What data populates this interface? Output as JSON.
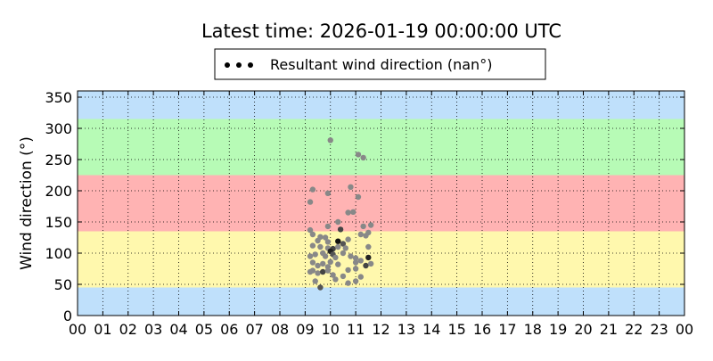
{
  "chart_data": {
    "type": "scatter",
    "title": "Latest time: 2026-01-19 00:00:00 UTC",
    "xlabel": "",
    "ylabel": "Wind direction (°)",
    "xlim": [
      0,
      24
    ],
    "ylim": [
      0,
      360
    ],
    "grid": true,
    "legend_position": "top-center",
    "x_tick_labels": [
      "00",
      "01",
      "02",
      "03",
      "04",
      "05",
      "06",
      "07",
      "08",
      "09",
      "10",
      "11",
      "12",
      "13",
      "14",
      "15",
      "16",
      "17",
      "18",
      "19",
      "20",
      "21",
      "22",
      "23",
      "00"
    ],
    "y_ticks": [
      0,
      50,
      100,
      150,
      200,
      250,
      300,
      350
    ],
    "bands": [
      {
        "from": 0,
        "to": 45,
        "color": "#bfe0fb"
      },
      {
        "from": 45,
        "to": 135,
        "color": "#fff8ad"
      },
      {
        "from": 135,
        "to": 225,
        "color": "#ffb3b3"
      },
      {
        "from": 225,
        "to": 315,
        "color": "#b7fbb6"
      },
      {
        "from": 315,
        "to": 360,
        "color": "#bfe0fb"
      }
    ],
    "series": [
      {
        "name": "Resultant wind direction (nan°)",
        "points": [
          {
            "x": 9.2,
            "y": 182,
            "c": "#888888"
          },
          {
            "x": 9.3,
            "y": 202,
            "c": "#888888"
          },
          {
            "x": 9.9,
            "y": 196,
            "c": "#888888"
          },
          {
            "x": 10.0,
            "y": 281,
            "c": "#888888"
          },
          {
            "x": 11.1,
            "y": 258,
            "c": "#888888"
          },
          {
            "x": 11.3,
            "y": 253,
            "c": "#888888"
          },
          {
            "x": 10.8,
            "y": 206,
            "c": "#888888"
          },
          {
            "x": 11.1,
            "y": 190,
            "c": "#888888"
          },
          {
            "x": 10.7,
            "y": 165,
            "c": "#888888"
          },
          {
            "x": 10.9,
            "y": 166,
            "c": "#888888"
          },
          {
            "x": 10.3,
            "y": 150,
            "c": "#888888"
          },
          {
            "x": 9.9,
            "y": 143,
            "c": "#888888"
          },
          {
            "x": 10.4,
            "y": 138,
            "c": "#444444"
          },
          {
            "x": 11.3,
            "y": 143,
            "c": "#888888"
          },
          {
            "x": 11.6,
            "y": 145,
            "c": "#888888"
          },
          {
            "x": 9.2,
            "y": 137,
            "c": "#888888"
          },
          {
            "x": 9.3,
            "y": 130,
            "c": "#888888"
          },
          {
            "x": 9.6,
            "y": 126,
            "c": "#888888"
          },
          {
            "x": 9.8,
            "y": 125,
            "c": "#888888"
          },
          {
            "x": 9.5,
            "y": 120,
            "c": "#888888"
          },
          {
            "x": 9.9,
            "y": 118,
            "c": "#888888"
          },
          {
            "x": 10.3,
            "y": 119,
            "c": "#111111"
          },
          {
            "x": 10.5,
            "y": 115,
            "c": "#555555"
          },
          {
            "x": 10.7,
            "y": 122,
            "c": "#888888"
          },
          {
            "x": 11.2,
            "y": 130,
            "c": "#888888"
          },
          {
            "x": 11.4,
            "y": 128,
            "c": "#888888"
          },
          {
            "x": 11.5,
            "y": 133,
            "c": "#888888"
          },
          {
            "x": 9.3,
            "y": 112,
            "c": "#888888"
          },
          {
            "x": 9.6,
            "y": 110,
            "c": "#888888"
          },
          {
            "x": 9.9,
            "y": 108,
            "c": "#888888"
          },
          {
            "x": 10.1,
            "y": 107,
            "c": "#444444"
          },
          {
            "x": 10.3,
            "y": 110,
            "c": "#888888"
          },
          {
            "x": 10.6,
            "y": 108,
            "c": "#888888"
          },
          {
            "x": 11.5,
            "y": 110,
            "c": "#888888"
          },
          {
            "x": 9.2,
            "y": 95,
            "c": "#888888"
          },
          {
            "x": 9.4,
            "y": 98,
            "c": "#888888"
          },
          {
            "x": 9.7,
            "y": 100,
            "c": "#888888"
          },
          {
            "x": 9.8,
            "y": 95,
            "c": "#888888"
          },
          {
            "x": 10.0,
            "y": 103,
            "c": "#222222"
          },
          {
            "x": 10.1,
            "y": 98,
            "c": "#555555"
          },
          {
            "x": 10.2,
            "y": 93,
            "c": "#888888"
          },
          {
            "x": 10.5,
            "y": 100,
            "c": "#888888"
          },
          {
            "x": 10.8,
            "y": 95,
            "c": "#888888"
          },
          {
            "x": 11.0,
            "y": 92,
            "c": "#888888"
          },
          {
            "x": 11.2,
            "y": 88,
            "c": "#888888"
          },
          {
            "x": 11.5,
            "y": 93,
            "c": "#222222"
          },
          {
            "x": 9.3,
            "y": 85,
            "c": "#888888"
          },
          {
            "x": 9.5,
            "y": 80,
            "c": "#888888"
          },
          {
            "x": 9.7,
            "y": 83,
            "c": "#888888"
          },
          {
            "x": 9.9,
            "y": 78,
            "c": "#888888"
          },
          {
            "x": 10.0,
            "y": 86,
            "c": "#888888"
          },
          {
            "x": 10.3,
            "y": 82,
            "c": "#888888"
          },
          {
            "x": 11.0,
            "y": 85,
            "c": "#888888"
          },
          {
            "x": 11.4,
            "y": 80,
            "c": "#444444"
          },
          {
            "x": 11.6,
            "y": 83,
            "c": "#888888"
          },
          {
            "x": 9.3,
            "y": 72,
            "c": "#888888"
          },
          {
            "x": 9.5,
            "y": 68,
            "c": "#888888"
          },
          {
            "x": 9.7,
            "y": 70,
            "c": "#444444"
          },
          {
            "x": 9.9,
            "y": 72,
            "c": "#888888"
          },
          {
            "x": 10.7,
            "y": 73,
            "c": "#888888"
          },
          {
            "x": 11.0,
            "y": 75,
            "c": "#888888"
          },
          {
            "x": 9.4,
            "y": 55,
            "c": "#888888"
          },
          {
            "x": 9.6,
            "y": 45,
            "c": "#555555"
          },
          {
            "x": 10.2,
            "y": 58,
            "c": "#888888"
          },
          {
            "x": 10.5,
            "y": 63,
            "c": "#888888"
          },
          {
            "x": 10.7,
            "y": 52,
            "c": "#888888"
          },
          {
            "x": 11.0,
            "y": 55,
            "c": "#888888"
          },
          {
            "x": 11.2,
            "y": 62,
            "c": "#888888"
          },
          {
            "x": 9.2,
            "y": 70,
            "c": "#888888"
          },
          {
            "x": 10.1,
            "y": 65,
            "c": "#888888"
          }
        ]
      }
    ]
  }
}
